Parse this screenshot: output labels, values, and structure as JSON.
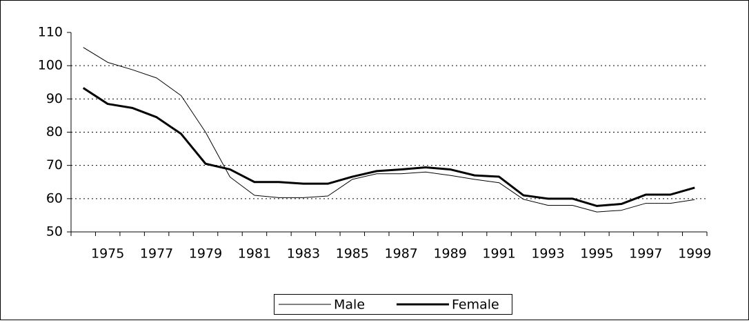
{
  "chart_data": {
    "type": "line",
    "categories": [
      null,
      "1975",
      null,
      "1977",
      null,
      "1979",
      null,
      "1981",
      null,
      "1983",
      null,
      "1985",
      null,
      "1987",
      null,
      "1989",
      null,
      "1991",
      null,
      "1993",
      null,
      "1995",
      null,
      "1997",
      null,
      "1999"
    ],
    "series": [
      {
        "name": "Male",
        "color": "#000000",
        "values": [
          105.5,
          101,
          98.8,
          96.3,
          91,
          80,
          66.5,
          61,
          60.3,
          60.3,
          60.8,
          65.8,
          67.5,
          67.5,
          68,
          67,
          65.8,
          64.8,
          59.8,
          58,
          58,
          56,
          56.5,
          58.6,
          58.6,
          59.7
        ]
      },
      {
        "name": "Female",
        "color": "#000000",
        "values": [
          93.3,
          88.5,
          87.3,
          84.5,
          79.5,
          70.5,
          68.8,
          65,
          65,
          64.5,
          64.5,
          66.6,
          68.3,
          68.8,
          69.4,
          68.8,
          67,
          66.6,
          61,
          60,
          60,
          57.8,
          58.4,
          61.2,
          61.2,
          63.3
        ]
      }
    ],
    "ylim": [
      50,
      110
    ],
    "yticks": [
      50,
      60,
      70,
      80,
      90,
      100,
      110
    ],
    "grid": true,
    "legend": "bottom"
  }
}
